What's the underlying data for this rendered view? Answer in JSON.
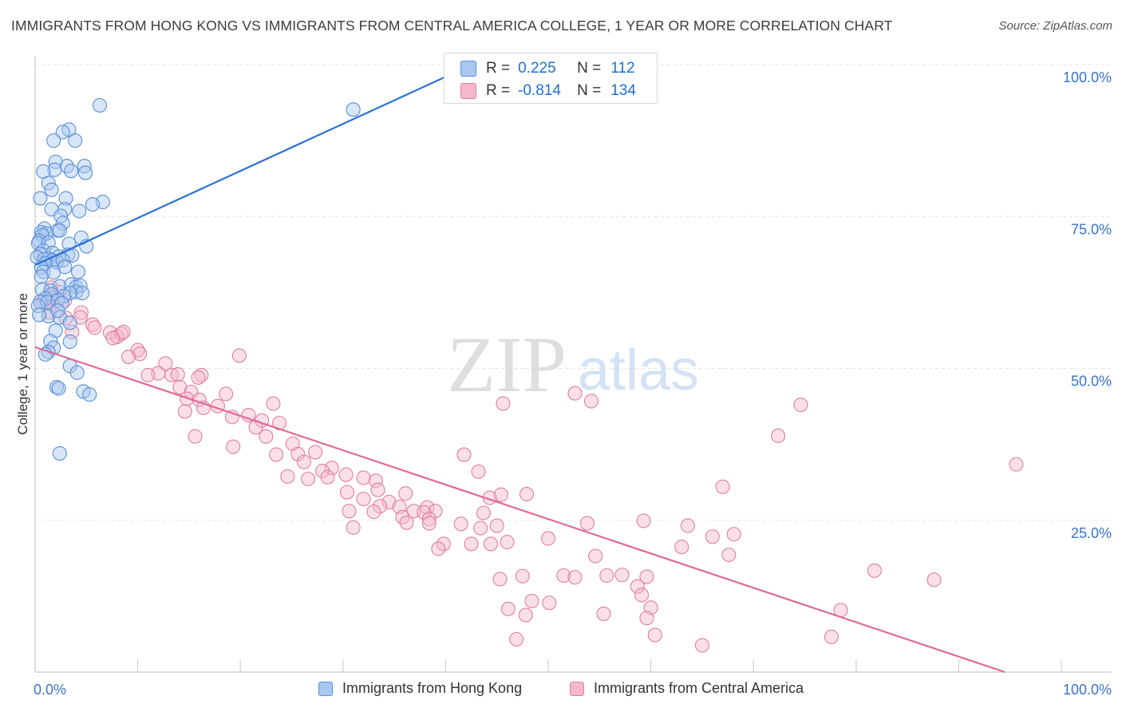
{
  "title": "IMMIGRANTS FROM HONG KONG VS IMMIGRANTS FROM CENTRAL AMERICA COLLEGE, 1 YEAR OR MORE CORRELATION CHART",
  "source": "Source: ZipAtlas.com",
  "watermark": {
    "zip": "ZIP",
    "atlas": "atlas"
  },
  "colors": {
    "blue_fill": "#a8c8f0",
    "blue_stroke": "#5a8fd6",
    "blue_line": "#2a72d4",
    "pink_fill": "#f5b8cb",
    "pink_stroke": "#e07fa0",
    "pink_line": "#e06a96",
    "tick_label": "#3a74c9",
    "grid": "#e3e3e3",
    "watermark": "#d0d0d0"
  },
  "inset_legend": {
    "rows": [
      {
        "series": "Immigrants from Hong Kong",
        "r_label": "R =",
        "r_value": "0.225",
        "n_label": "N =",
        "n_value": "112"
      },
      {
        "series": "Immigrants from Central America",
        "r_label": "R =",
        "r_value": "-0.814",
        "n_label": "N =",
        "n_value": "134"
      }
    ]
  },
  "bottom_legend": {
    "items": [
      {
        "label": "Immigrants from Hong Kong"
      },
      {
        "label": "Immigrants from Central America"
      }
    ]
  },
  "chart_data": {
    "type": "scatter",
    "title": "IMMIGRANTS FROM HONG KONG VS IMMIGRANTS FROM CENTRAL AMERICA COLLEGE, 1 YEAR OR MORE CORRELATION CHART",
    "xlabel": "",
    "ylabel": "College, 1 year or more",
    "xlim": [
      0,
      100
    ],
    "ylim": [
      0,
      100
    ],
    "x_tick_labels": [
      {
        "value": 0,
        "label": "0.0%"
      },
      {
        "value": 100,
        "label": "100.0%"
      }
    ],
    "y_tick_labels": [
      {
        "value": 25,
        "label": "25.0%"
      },
      {
        "value": 50,
        "label": "50.0%"
      },
      {
        "value": 75,
        "label": "75.0%"
      },
      {
        "value": 100,
        "label": "100.0%"
      }
    ],
    "grid": true,
    "legend_position": "bottom",
    "series": [
      {
        "name": "Immigrants from Hong Kong",
        "r": 0.225,
        "n": 112,
        "trend_line": {
          "x": [
            0,
            40
          ],
          "y": [
            67,
            98
          ]
        },
        "points": [
          [
            6.3,
            93.3
          ],
          [
            31,
            92.6
          ],
          [
            3.3,
            89.3
          ],
          [
            2.7,
            88.9
          ],
          [
            1.8,
            87.5
          ],
          [
            3.9,
            87.5
          ],
          [
            2.0,
            84.0
          ],
          [
            3.1,
            83.3
          ],
          [
            4.8,
            83.3
          ],
          [
            1.9,
            82.7
          ],
          [
            3.5,
            82.5
          ],
          [
            0.8,
            82.4
          ],
          [
            4.9,
            82.2
          ],
          [
            1.3,
            80.5
          ],
          [
            1.6,
            79.4
          ],
          [
            0.5,
            78.0
          ],
          [
            3.0,
            78.0
          ],
          [
            6.6,
            77.4
          ],
          [
            5.6,
            77.0
          ],
          [
            1.6,
            76.2
          ],
          [
            2.9,
            76.2
          ],
          [
            4.3,
            75.9
          ],
          [
            2.5,
            75.1
          ],
          [
            2.7,
            73.9
          ],
          [
            0.9,
            73.0
          ],
          [
            2.2,
            72.7
          ],
          [
            2.4,
            72.7
          ],
          [
            0.6,
            72.4
          ],
          [
            1.1,
            72.2
          ],
          [
            0.7,
            71.9
          ],
          [
            4.5,
            71.5
          ],
          [
            0.4,
            71.0
          ],
          [
            0.3,
            70.6
          ],
          [
            1.3,
            70.7
          ],
          [
            3.3,
            70.5
          ],
          [
            5.0,
            70.1
          ],
          [
            0.8,
            69.4
          ],
          [
            1.7,
            69.0
          ],
          [
            0.5,
            68.8
          ],
          [
            0.2,
            68.3
          ],
          [
            1.3,
            68.1
          ],
          [
            2.3,
            68.4
          ],
          [
            3.2,
            68.7
          ],
          [
            3.6,
            68.6
          ],
          [
            0.9,
            68.0
          ],
          [
            1.7,
            67.8
          ],
          [
            2.1,
            67.5
          ],
          [
            2.7,
            67.8
          ],
          [
            1.0,
            67.3
          ],
          [
            0.6,
            66.6
          ],
          [
            2.9,
            66.7
          ],
          [
            0.8,
            65.9
          ],
          [
            1.8,
            65.8
          ],
          [
            4.2,
            65.9
          ],
          [
            0.6,
            65.1
          ],
          [
            2.4,
            63.5
          ],
          [
            3.5,
            63.8
          ],
          [
            4.0,
            63.4
          ],
          [
            4.4,
            63.6
          ],
          [
            0.7,
            63.0
          ],
          [
            1.5,
            62.8
          ],
          [
            4.0,
            62.6
          ],
          [
            4.6,
            62.4
          ],
          [
            1.6,
            62.2
          ],
          [
            3.4,
            62.4
          ],
          [
            2.8,
            61.9
          ],
          [
            1.0,
            61.5
          ],
          [
            0.5,
            61.0
          ],
          [
            1.2,
            60.9
          ],
          [
            2.2,
            61.2
          ],
          [
            2.6,
            60.7
          ],
          [
            0.3,
            60.3
          ],
          [
            1.3,
            58.6
          ],
          [
            2.4,
            58.4
          ],
          [
            3.4,
            57.5
          ],
          [
            2.0,
            56.2
          ],
          [
            1.5,
            54.5
          ],
          [
            3.4,
            54.4
          ],
          [
            1.8,
            53.4
          ],
          [
            1.3,
            52.7
          ],
          [
            1.0,
            52.3
          ],
          [
            3.4,
            50.4
          ],
          [
            4.1,
            49.3
          ],
          [
            2.1,
            46.9
          ],
          [
            2.3,
            46.7
          ],
          [
            4.7,
            46.2
          ],
          [
            5.3,
            45.7
          ],
          [
            2.4,
            36.0
          ],
          [
            0.4,
            58.8
          ],
          [
            2.2,
            59.5
          ]
        ]
      },
      {
        "name": "Immigrants from Central America",
        "r": -0.814,
        "n": 134,
        "trend_line": {
          "x": [
            0,
            94.5
          ],
          "y": [
            53.5,
            0
          ]
        },
        "points": [
          [
            0.8,
            61.1
          ],
          [
            1.6,
            63.3
          ],
          [
            2.3,
            62.6
          ],
          [
            1.6,
            61.6
          ],
          [
            2.9,
            61.2
          ],
          [
            1.8,
            60.2
          ],
          [
            1.4,
            59.2
          ],
          [
            4.5,
            59.2
          ],
          [
            3.0,
            58.3
          ],
          [
            4.4,
            58.4
          ],
          [
            5.6,
            57.2
          ],
          [
            5.8,
            56.7
          ],
          [
            3.6,
            56.0
          ],
          [
            7.3,
            55.9
          ],
          [
            8.0,
            55.2
          ],
          [
            8.4,
            55.7
          ],
          [
            7.6,
            55.0
          ],
          [
            8.6,
            56.0
          ],
          [
            10.0,
            53.0
          ],
          [
            10.2,
            52.4
          ],
          [
            9.1,
            51.9
          ],
          [
            19.9,
            52.1
          ],
          [
            12.7,
            50.8
          ],
          [
            12.0,
            49.2
          ],
          [
            13.3,
            48.9
          ],
          [
            11.0,
            48.9
          ],
          [
            13.9,
            49.0
          ],
          [
            16.2,
            48.9
          ],
          [
            15.9,
            48.5
          ],
          [
            14.1,
            46.9
          ],
          [
            15.2,
            46.1
          ],
          [
            18.6,
            45.8
          ],
          [
            14.8,
            45.0
          ],
          [
            16.0,
            44.8
          ],
          [
            17.8,
            43.8
          ],
          [
            16.4,
            43.5
          ],
          [
            23.2,
            44.2
          ],
          [
            14.6,
            42.9
          ],
          [
            20.8,
            42.3
          ],
          [
            19.2,
            42.0
          ],
          [
            22.1,
            41.4
          ],
          [
            23.8,
            41.0
          ],
          [
            21.5,
            40.3
          ],
          [
            15.6,
            38.8
          ],
          [
            22.5,
            38.8
          ],
          [
            25.1,
            37.6
          ],
          [
            19.3,
            37.1
          ],
          [
            25.6,
            35.9
          ],
          [
            27.3,
            36.2
          ],
          [
            23.5,
            35.8
          ],
          [
            26.2,
            34.6
          ],
          [
            28.9,
            33.6
          ],
          [
            28.0,
            33.1
          ],
          [
            30.3,
            32.5
          ],
          [
            24.6,
            32.2
          ],
          [
            28.5,
            32.1
          ],
          [
            32.0,
            32.0
          ],
          [
            26.6,
            31.8
          ],
          [
            33.2,
            31.5
          ],
          [
            30.4,
            29.6
          ],
          [
            33.4,
            30.0
          ],
          [
            36.1,
            29.4
          ],
          [
            32.0,
            28.5
          ],
          [
            34.5,
            28.0
          ],
          [
            33.6,
            27.3
          ],
          [
            35.5,
            27.2
          ],
          [
            38.2,
            27.1
          ],
          [
            39.0,
            26.5
          ],
          [
            36.9,
            26.5
          ],
          [
            37.9,
            26.3
          ],
          [
            30.6,
            26.5
          ],
          [
            33.0,
            26.4
          ],
          [
            35.8,
            25.5
          ],
          [
            38.4,
            25.2
          ],
          [
            36.2,
            24.6
          ],
          [
            38.4,
            24.5
          ],
          [
            31.0,
            23.8
          ],
          [
            45.6,
            44.2
          ],
          [
            52.6,
            45.9
          ],
          [
            54.2,
            44.6
          ],
          [
            72.4,
            38.9
          ],
          [
            74.6,
            44.0
          ],
          [
            95.6,
            34.2
          ],
          [
            67.0,
            30.5
          ],
          [
            41.8,
            35.8
          ],
          [
            43.2,
            33.0
          ],
          [
            44.3,
            28.7
          ],
          [
            45.4,
            29.2
          ],
          [
            47.9,
            29.3
          ],
          [
            43.7,
            26.2
          ],
          [
            41.5,
            24.4
          ],
          [
            45.0,
            24.1
          ],
          [
            43.4,
            23.7
          ],
          [
            50.0,
            22.0
          ],
          [
            53.8,
            24.5
          ],
          [
            59.3,
            24.9
          ],
          [
            63.6,
            24.1
          ],
          [
            66.0,
            22.3
          ],
          [
            68.1,
            22.7
          ],
          [
            39.8,
            21.1
          ],
          [
            39.3,
            20.3
          ],
          [
            42.5,
            21.1
          ],
          [
            44.4,
            21.1
          ],
          [
            46.0,
            21.4
          ],
          [
            63.0,
            20.6
          ],
          [
            67.6,
            19.3
          ],
          [
            54.6,
            19.1
          ],
          [
            55.7,
            15.9
          ],
          [
            59.6,
            15.7
          ],
          [
            51.5,
            15.9
          ],
          [
            52.6,
            15.6
          ],
          [
            45.3,
            15.3
          ],
          [
            47.5,
            15.8
          ],
          [
            58.7,
            14.1
          ],
          [
            59.1,
            12.7
          ],
          [
            48.4,
            11.7
          ],
          [
            50.1,
            11.4
          ],
          [
            46.1,
            10.4
          ],
          [
            47.8,
            9.4
          ],
          [
            55.4,
            9.6
          ],
          [
            60.0,
            10.6
          ],
          [
            59.6,
            8.9
          ],
          [
            81.8,
            16.7
          ],
          [
            87.6,
            15.2
          ],
          [
            78.5,
            10.2
          ],
          [
            60.4,
            6.1
          ],
          [
            46.9,
            5.4
          ],
          [
            77.6,
            5.8
          ],
          [
            65.0,
            4.4
          ],
          [
            57.2,
            16.0
          ]
        ]
      }
    ]
  }
}
